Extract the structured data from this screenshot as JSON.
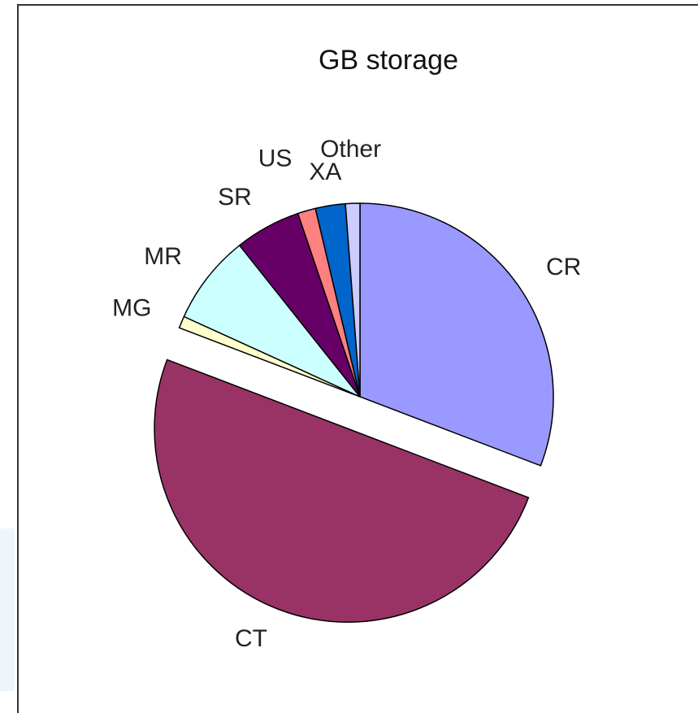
{
  "chart_data": {
    "type": "pie",
    "title": "GB storage",
    "categories": [
      "CR",
      "CT",
      "MG",
      "MR",
      "SR",
      "US",
      "XA",
      "Other"
    ],
    "values": [
      30.8,
      50,
      1,
      7.5,
      5.5,
      1.5,
      2.5,
      1.2
    ],
    "colors": [
      "#9999ff",
      "#993366",
      "#ffffcc",
      "#ccffff",
      "#660066",
      "#ff8080",
      "#0066cc",
      "#ccccff"
    ],
    "exploded": [
      "CT"
    ]
  }
}
